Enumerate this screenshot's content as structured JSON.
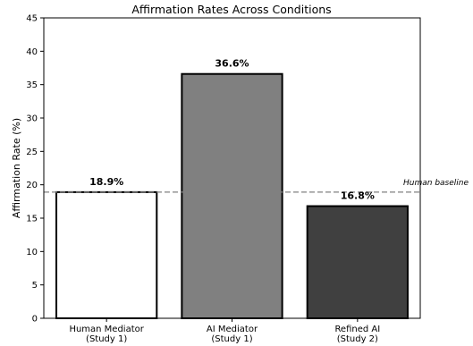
{
  "chart_data": {
    "type": "bar",
    "title": "Affirmation Rates Across Conditions",
    "xlabel": "",
    "ylabel": "Affirmation Rate (%)",
    "ylim": [
      0,
      45
    ],
    "yticks": [
      0,
      5,
      10,
      15,
      20,
      25,
      30,
      35,
      40,
      45
    ],
    "grid": false,
    "categories": [
      [
        "Human Mediator",
        "(Study 1)"
      ],
      [
        "AI Mediator",
        "(Study 1)"
      ],
      [
        "Refined AI",
        "(Study 2)"
      ]
    ],
    "values": [
      18.9,
      36.6,
      16.8
    ],
    "data_labels": [
      "18.9%",
      "36.6%",
      "16.8%"
    ],
    "bar_colors": [
      "#ffffff",
      "#808080",
      "#404040"
    ],
    "bar_edge_color": "#000000",
    "reference_line": {
      "value": 18.9,
      "label": "Human baseline",
      "color": "#808080",
      "style": "dashed"
    }
  }
}
